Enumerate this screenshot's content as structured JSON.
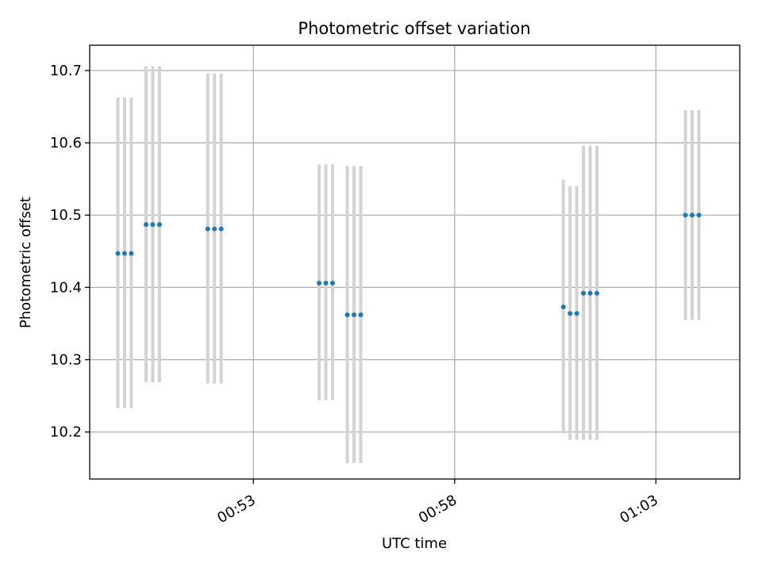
{
  "chart_data": {
    "type": "scatter",
    "title": "Photometric offset variation",
    "xlabel": "UTC time",
    "ylabel": "Photometric offset",
    "x_unit": "UTC time (hh:mm)",
    "xlim": [
      "00:48:56",
      "01:05:05"
    ],
    "ylim": [
      10.135,
      10.735
    ],
    "xticks": [
      {
        "time": "00:53:00",
        "label": "00:53"
      },
      {
        "time": "00:58:00",
        "label": "00:58"
      },
      {
        "time": "01:03:00",
        "label": "01:03"
      }
    ],
    "yticks": [
      10.2,
      10.3,
      10.4,
      10.5,
      10.6,
      10.7
    ],
    "grid": true,
    "series": [
      {
        "points": [
          {
            "x": "00:49:38",
            "y": 10.447,
            "ylow": 10.233,
            "yhigh": 10.663
          },
          {
            "x": "00:49:48",
            "y": 10.447,
            "ylow": 10.233,
            "yhigh": 10.663
          },
          {
            "x": "00:49:58",
            "y": 10.447,
            "ylow": 10.233,
            "yhigh": 10.663
          },
          {
            "x": "00:50:20",
            "y": 10.487,
            "ylow": 10.269,
            "yhigh": 10.706
          },
          {
            "x": "00:50:30",
            "y": 10.487,
            "ylow": 10.269,
            "yhigh": 10.706
          },
          {
            "x": "00:50:40",
            "y": 10.487,
            "ylow": 10.269,
            "yhigh": 10.706
          },
          {
            "x": "00:51:52",
            "y": 10.481,
            "ylow": 10.267,
            "yhigh": 10.696
          },
          {
            "x": "00:52:02",
            "y": 10.481,
            "ylow": 10.267,
            "yhigh": 10.696
          },
          {
            "x": "00:52:12",
            "y": 10.481,
            "ylow": 10.267,
            "yhigh": 10.696
          },
          {
            "x": "00:54:38",
            "y": 10.406,
            "ylow": 10.244,
            "yhigh": 10.57
          },
          {
            "x": "00:54:48",
            "y": 10.406,
            "ylow": 10.244,
            "yhigh": 10.57
          },
          {
            "x": "00:54:58",
            "y": 10.406,
            "ylow": 10.244,
            "yhigh": 10.57
          },
          {
            "x": "00:55:20",
            "y": 10.362,
            "ylow": 10.157,
            "yhigh": 10.568
          },
          {
            "x": "00:55:30",
            "y": 10.362,
            "ylow": 10.157,
            "yhigh": 10.568
          },
          {
            "x": "00:55:40",
            "y": 10.362,
            "ylow": 10.157,
            "yhigh": 10.568
          },
          {
            "x": "01:00:42",
            "y": 10.373,
            "ylow": 10.198,
            "yhigh": 10.549
          },
          {
            "x": "01:00:52",
            "y": 10.364,
            "ylow": 10.189,
            "yhigh": 10.54
          },
          {
            "x": "01:01:02",
            "y": 10.364,
            "ylow": 10.189,
            "yhigh": 10.54
          },
          {
            "x": "01:01:12",
            "y": 10.392,
            "ylow": 10.189,
            "yhigh": 10.596
          },
          {
            "x": "01:01:22",
            "y": 10.392,
            "ylow": 10.189,
            "yhigh": 10.596
          },
          {
            "x": "01:01:32",
            "y": 10.392,
            "ylow": 10.189,
            "yhigh": 10.596
          },
          {
            "x": "01:03:44",
            "y": 10.5,
            "ylow": 10.355,
            "yhigh": 10.645
          },
          {
            "x": "01:03:54",
            "y": 10.5,
            "ylow": 10.355,
            "yhigh": 10.645
          },
          {
            "x": "01:04:04",
            "y": 10.5,
            "ylow": 10.355,
            "yhigh": 10.645
          }
        ]
      }
    ],
    "colors": {
      "marker": "#1f77b4",
      "errorbar": "#d3d3d3",
      "grid": "#b0b0b0",
      "axes": "#000000"
    }
  }
}
